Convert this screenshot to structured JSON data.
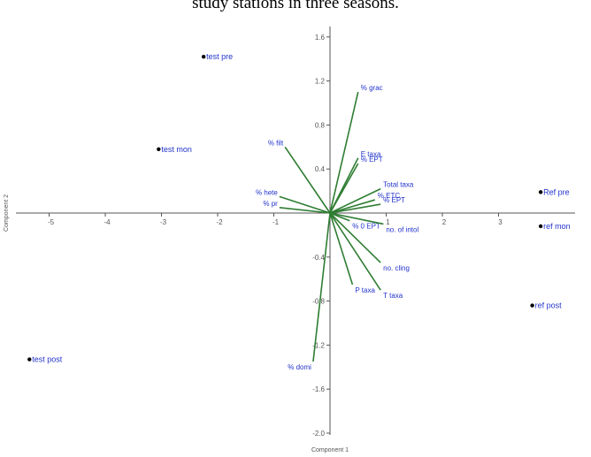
{
  "caption": "study stations in three seasons.",
  "chart_data": {
    "type": "scatter",
    "subtype": "biplot",
    "xlabel": "Component 1",
    "ylabel": "Component 2",
    "xlim": [
      -5.1,
      4.5
    ],
    "ylim": [
      -2.0,
      1.6
    ],
    "x_ticks": [
      {
        "value": -5,
        "label": "-5"
      },
      {
        "value": -4,
        "label": "-4"
      },
      {
        "value": -3,
        "label": "-3"
      },
      {
        "value": -2,
        "label": "-2"
      },
      {
        "value": -1,
        "label": "-1"
      },
      {
        "value": 1,
        "label": "1"
      },
      {
        "value": 2,
        "label": "2"
      },
      {
        "value": 3,
        "label": "3"
      }
    ],
    "y_ticks": [
      {
        "value": 1.6,
        "label": "1.6"
      },
      {
        "value": 1.2,
        "label": "1.2"
      },
      {
        "value": 0.8,
        "label": "0.8"
      },
      {
        "value": 0.4,
        "label": "0.4"
      },
      {
        "value": -0.4,
        "label": "-0.4"
      },
      {
        "value": -0.8,
        "label": "-0.8"
      },
      {
        "value": -1.2,
        "label": "-1.2"
      },
      {
        "value": -1.6,
        "label": "-1.6"
      },
      {
        "value": -2.0,
        "label": "-2.0"
      }
    ],
    "points": [
      {
        "label": "test pre",
        "x": -2.25,
        "y": 1.42
      },
      {
        "label": "test mon",
        "x": -3.05,
        "y": 0.58
      },
      {
        "label": "test post",
        "x": -5.35,
        "y": -1.33
      },
      {
        "label": "Ref pre",
        "x": 3.75,
        "y": 0.19
      },
      {
        "label": "ref mon",
        "x": 3.75,
        "y": -0.12
      },
      {
        "label": "ref post",
        "x": 3.6,
        "y": -0.84
      }
    ],
    "vectors": [
      {
        "label": "% grac",
        "x": 0.5,
        "y": 1.1
      },
      {
        "label": "% filt",
        "x": -0.8,
        "y": 0.6
      },
      {
        "label": "E taxa",
        "x": 0.5,
        "y": 0.5
      },
      {
        "label": "% EPT",
        "x": 0.5,
        "y": 0.45
      },
      {
        "label": "Total taxa",
        "x": 0.9,
        "y": 0.22
      },
      {
        "label": "% ETC",
        "x": 0.8,
        "y": 0.12
      },
      {
        "label": "% EPT",
        "x": 0.9,
        "y": 0.08
      },
      {
        "label": "% hete",
        "x": -0.9,
        "y": 0.15
      },
      {
        "label": "% pr",
        "x": -0.9,
        "y": 0.05
      },
      {
        "label": "% 0 EPT",
        "x": 0.35,
        "y": -0.07
      },
      {
        "label": "no. of intol",
        "x": 0.95,
        "y": -0.1
      },
      {
        "label": "no. cling",
        "x": 0.9,
        "y": -0.45
      },
      {
        "label": "P taxa",
        "x": 0.4,
        "y": -0.65
      },
      {
        "label": "T taxa",
        "x": 0.9,
        "y": -0.7
      },
      {
        "label": "% domi",
        "x": -0.3,
        "y": -1.35
      }
    ]
  }
}
